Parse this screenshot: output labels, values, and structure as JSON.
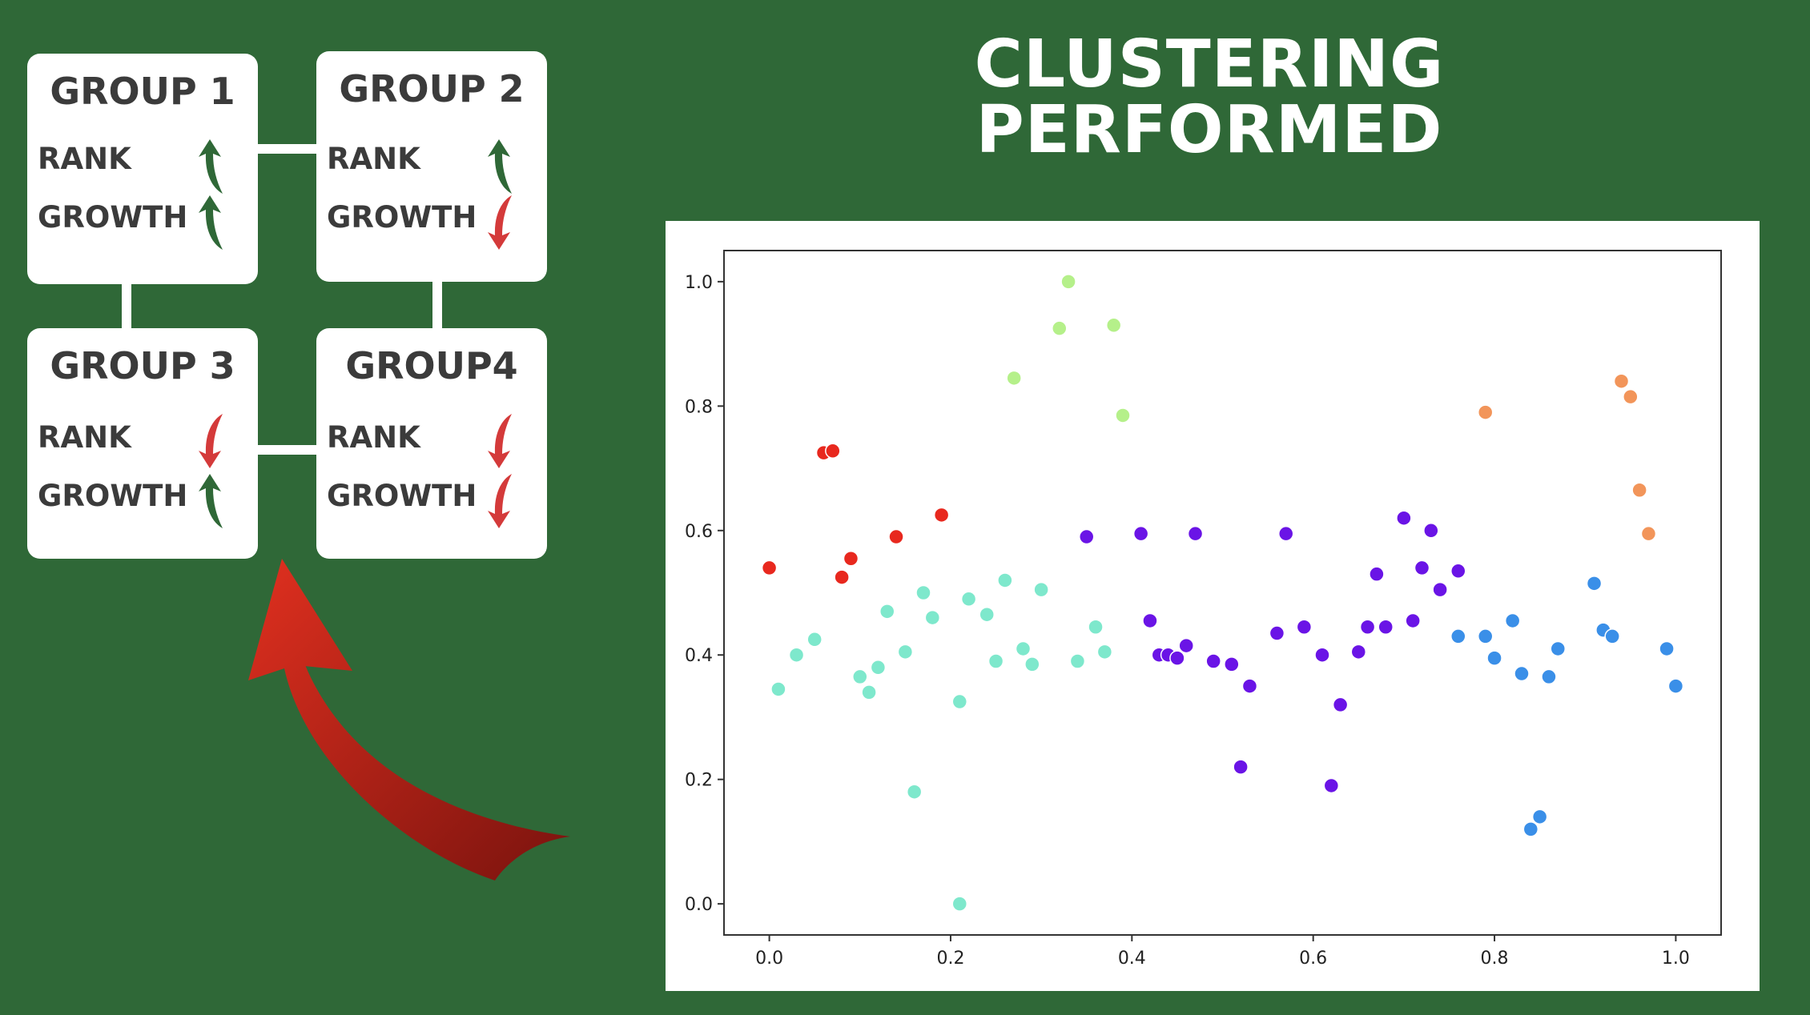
{
  "title_lines": [
    "CLUSTERING",
    "PERFORMED"
  ],
  "colors": {
    "background": "#2f6837",
    "arrow_up": "#2f6837",
    "arrow_down": "#d43a3a",
    "big_arrow": "#c0251b"
  },
  "groups": [
    {
      "title": "GROUP 1",
      "rank_label": "RANK",
      "growth_label": "GROWTH",
      "rank_direction": "up",
      "growth_direction": "up"
    },
    {
      "title": "GROUP 2",
      "rank_label": "RANK",
      "growth_label": "GROWTH",
      "rank_direction": "up",
      "growth_direction": "down"
    },
    {
      "title": "GROUP 3",
      "rank_label": "RANK",
      "growth_label": "GROWTH",
      "rank_direction": "down",
      "growth_direction": "up"
    },
    {
      "title": "GROUP4",
      "rank_label": "RANK",
      "growth_label": "GROWTH",
      "rank_direction": "down",
      "growth_direction": "down"
    }
  ],
  "chart_data": {
    "type": "scatter",
    "title": "",
    "xlabel": "",
    "ylabel": "",
    "xlim": [
      -0.05,
      1.05
    ],
    "ylim": [
      -0.05,
      1.05
    ],
    "xticks": [
      "0.0",
      "0.2",
      "0.4",
      "0.6",
      "0.8",
      "1.0"
    ],
    "yticks": [
      "0.0",
      "0.2",
      "0.4",
      "0.6",
      "0.8",
      "1.0"
    ],
    "grid": false,
    "legend": false,
    "clusters": [
      {
        "color": "#e8281e",
        "points": [
          [
            0.0,
            0.54
          ],
          [
            0.06,
            0.725
          ],
          [
            0.07,
            0.728
          ],
          [
            0.08,
            0.525
          ],
          [
            0.09,
            0.555
          ],
          [
            0.14,
            0.59
          ],
          [
            0.19,
            0.625
          ]
        ]
      },
      {
        "color": "#b5f08a",
        "points": [
          [
            0.27,
            0.845
          ],
          [
            0.32,
            0.925
          ],
          [
            0.33,
            1.0
          ],
          [
            0.38,
            0.93
          ],
          [
            0.39,
            0.785
          ]
        ]
      },
      {
        "color": "#f2955a",
        "points": [
          [
            0.79,
            0.79
          ],
          [
            0.94,
            0.84
          ],
          [
            0.95,
            0.815
          ],
          [
            0.96,
            0.665
          ],
          [
            0.97,
            0.595
          ]
        ]
      },
      {
        "color": "#7ee8cc",
        "points": [
          [
            0.01,
            0.345
          ],
          [
            0.03,
            0.4
          ],
          [
            0.05,
            0.425
          ],
          [
            0.1,
            0.365
          ],
          [
            0.11,
            0.34
          ],
          [
            0.12,
            0.38
          ],
          [
            0.13,
            0.47
          ],
          [
            0.15,
            0.405
          ],
          [
            0.16,
            0.18
          ],
          [
            0.17,
            0.5
          ],
          [
            0.18,
            0.46
          ],
          [
            0.21,
            0.0
          ],
          [
            0.21,
            0.325
          ],
          [
            0.22,
            0.49
          ],
          [
            0.24,
            0.465
          ],
          [
            0.25,
            0.39
          ],
          [
            0.26,
            0.52
          ],
          [
            0.28,
            0.41
          ],
          [
            0.29,
            0.385
          ],
          [
            0.3,
            0.505
          ],
          [
            0.34,
            0.39
          ],
          [
            0.36,
            0.445
          ],
          [
            0.37,
            0.405
          ]
        ]
      },
      {
        "color": "#6a14e6",
        "points": [
          [
            0.35,
            0.59
          ],
          [
            0.41,
            0.595
          ],
          [
            0.42,
            0.455
          ],
          [
            0.43,
            0.4
          ],
          [
            0.44,
            0.4
          ],
          [
            0.45,
            0.395
          ],
          [
            0.46,
            0.415
          ],
          [
            0.47,
            0.595
          ],
          [
            0.49,
            0.39
          ],
          [
            0.51,
            0.385
          ],
          [
            0.52,
            0.22
          ],
          [
            0.53,
            0.35
          ],
          [
            0.56,
            0.435
          ],
          [
            0.57,
            0.595
          ],
          [
            0.59,
            0.445
          ],
          [
            0.61,
            0.4
          ],
          [
            0.62,
            0.19
          ],
          [
            0.63,
            0.32
          ],
          [
            0.65,
            0.405
          ],
          [
            0.66,
            0.445
          ],
          [
            0.67,
            0.53
          ],
          [
            0.68,
            0.445
          ],
          [
            0.7,
            0.62
          ],
          [
            0.71,
            0.455
          ],
          [
            0.72,
            0.54
          ],
          [
            0.73,
            0.6
          ],
          [
            0.74,
            0.505
          ],
          [
            0.76,
            0.535
          ]
        ]
      },
      {
        "color": "#3a8fe8",
        "points": [
          [
            0.76,
            0.43
          ],
          [
            0.79,
            0.43
          ],
          [
            0.8,
            0.395
          ],
          [
            0.82,
            0.455
          ],
          [
            0.83,
            0.37
          ],
          [
            0.84,
            0.12
          ],
          [
            0.85,
            0.14
          ],
          [
            0.86,
            0.365
          ],
          [
            0.87,
            0.41
          ],
          [
            0.91,
            0.515
          ],
          [
            0.92,
            0.44
          ],
          [
            0.93,
            0.43
          ],
          [
            0.99,
            0.41
          ],
          [
            1.0,
            0.35
          ]
        ]
      }
    ]
  }
}
